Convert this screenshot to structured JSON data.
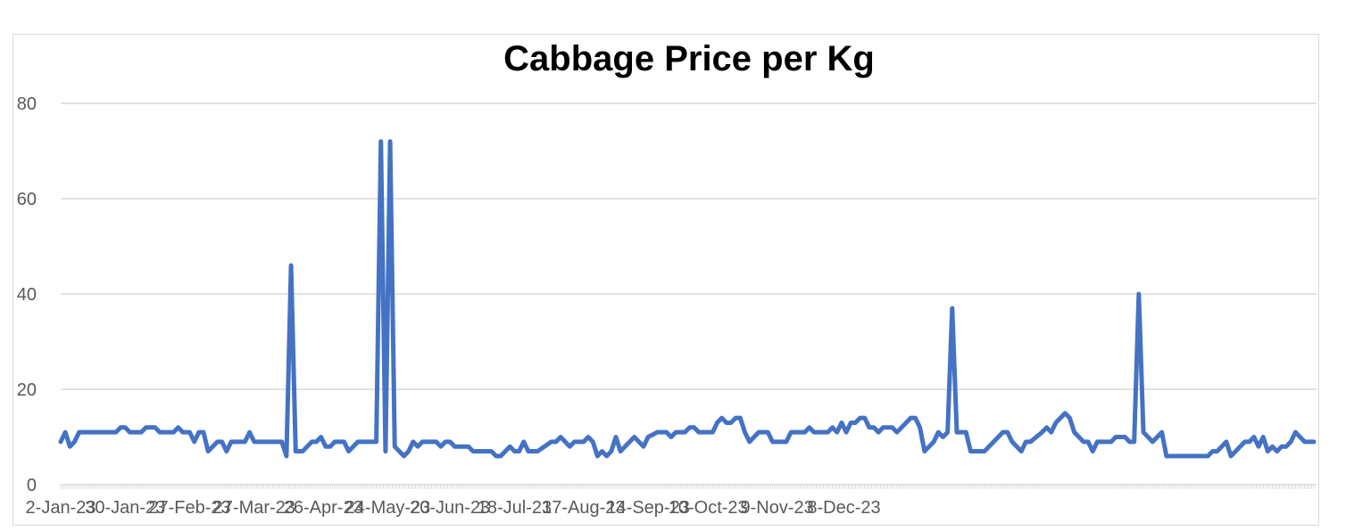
{
  "chart_data": {
    "type": "line",
    "title": "Cabbage Price per Kg",
    "xlabel": "",
    "ylabel": "",
    "ylim": [
      0,
      80
    ],
    "yticks": [
      0,
      20,
      40,
      60,
      80
    ],
    "grid": true,
    "legend": "none",
    "x_start_date": "2-Jan-23",
    "x_ticks": [
      "2-Jan-23",
      "30-Jan-23",
      "27-Feb-23",
      "27-Mar-23",
      "26-Apr-23",
      "24-May-23",
      "20-Jun-23",
      "18-Jul-23",
      "17-Aug-23",
      "14-Sep-23",
      "10-Oct-23",
      "9-Nov-23",
      "8-Dec-23"
    ],
    "series": [
      {
        "color": "#4472c4",
        "points": [
          [
            "2-Jan-23",
            9
          ],
          [
            "4-Jan-23",
            11
          ],
          [
            "6-Jan-23",
            8
          ],
          [
            "8-Jan-23",
            9
          ],
          [
            "10-Jan-23",
            11
          ],
          [
            "14-Jan-23",
            11
          ],
          [
            "20-Jan-23",
            11
          ],
          [
            "26-Jan-23",
            11
          ],
          [
            "28-Jan-23",
            12
          ],
          [
            "30-Jan-23",
            12
          ],
          [
            "1-Feb-23",
            11
          ],
          [
            "6-Feb-23",
            11
          ],
          [
            "8-Feb-23",
            12
          ],
          [
            "12-Feb-23",
            12
          ],
          [
            "14-Feb-23",
            11
          ],
          [
            "20-Feb-23",
            11
          ],
          [
            "22-Feb-23",
            12
          ],
          [
            "24-Feb-23",
            11
          ],
          [
            "27-Feb-23",
            11
          ],
          [
            "1-Mar-23",
            9
          ],
          [
            "3-Mar-23",
            11
          ],
          [
            "5-Mar-23",
            11
          ],
          [
            "7-Mar-23",
            7
          ],
          [
            "11-Mar-23",
            9
          ],
          [
            "13-Mar-23",
            9
          ],
          [
            "15-Mar-23",
            7
          ],
          [
            "17-Mar-23",
            9
          ],
          [
            "23-Mar-23",
            9
          ],
          [
            "25-Mar-23",
            11
          ],
          [
            "27-Mar-23",
            9
          ],
          [
            "31-Mar-23",
            9
          ],
          [
            "8-Apr-23",
            9
          ],
          [
            "10-Apr-23",
            6
          ],
          [
            "12-Apr-23",
            46
          ],
          [
            "14-Apr-23",
            7
          ],
          [
            "17-Apr-23",
            7
          ],
          [
            "21-Apr-23",
            9
          ],
          [
            "23-Apr-23",
            9
          ],
          [
            "25-Apr-23",
            10
          ],
          [
            "27-Apr-23",
            8
          ],
          [
            "29-Apr-23",
            8
          ],
          [
            "1-May-23",
            9
          ],
          [
            "5-May-23",
            9
          ],
          [
            "7-May-23",
            7
          ],
          [
            "11-May-23",
            9
          ],
          [
            "19-May-23",
            9
          ],
          [
            "21-May-23",
            72
          ],
          [
            "23-May-23",
            7
          ],
          [
            "25-May-23",
            72
          ],
          [
            "27-May-23",
            8
          ],
          [
            "31-May-23",
            6
          ],
          [
            "2-Jun-23",
            7
          ],
          [
            "4-Jun-23",
            9
          ],
          [
            "6-Jun-23",
            8
          ],
          [
            "8-Jun-23",
            9
          ],
          [
            "14-Jun-23",
            9
          ],
          [
            "16-Jun-23",
            8
          ],
          [
            "18-Jun-23",
            9
          ],
          [
            "20-Jun-23",
            9
          ],
          [
            "22-Jun-23",
            8
          ],
          [
            "28-Jun-23",
            8
          ],
          [
            "30-Jun-23",
            7
          ],
          [
            "8-Jul-23",
            7
          ],
          [
            "10-Jul-23",
            6
          ],
          [
            "12-Jul-23",
            6
          ],
          [
            "16-Jul-23",
            8
          ],
          [
            "18-Jul-23",
            7
          ],
          [
            "20-Jul-23",
            7
          ],
          [
            "22-Jul-23",
            9
          ],
          [
            "24-Jul-23",
            7
          ],
          [
            "28-Jul-23",
            7
          ],
          [
            "3-Aug-23",
            9
          ],
          [
            "5-Aug-23",
            9
          ],
          [
            "7-Aug-23",
            10
          ],
          [
            "11-Aug-23",
            8
          ],
          [
            "13-Aug-23",
            9
          ],
          [
            "17-Aug-23",
            9
          ],
          [
            "19-Aug-23",
            10
          ],
          [
            "21-Aug-23",
            9
          ],
          [
            "23-Aug-23",
            6
          ],
          [
            "25-Aug-23",
            7
          ],
          [
            "27-Aug-23",
            6
          ],
          [
            "29-Aug-23",
            7
          ],
          [
            "31-Aug-23",
            10
          ],
          [
            "2-Sep-23",
            7
          ],
          [
            "6-Sep-23",
            9
          ],
          [
            "8-Sep-23",
            10
          ],
          [
            "12-Sep-23",
            8
          ],
          [
            "14-Sep-23",
            10
          ],
          [
            "18-Sep-23",
            11
          ],
          [
            "22-Sep-23",
            11
          ],
          [
            "24-Sep-23",
            10
          ],
          [
            "26-Sep-23",
            11
          ],
          [
            "30-Sep-23",
            11
          ],
          [
            "2-Oct-23",
            12
          ],
          [
            "4-Oct-23",
            12
          ],
          [
            "6-Oct-23",
            11
          ],
          [
            "12-Oct-23",
            11
          ],
          [
            "14-Oct-23",
            13
          ],
          [
            "16-Oct-23",
            14
          ],
          [
            "18-Oct-23",
            13
          ],
          [
            "20-Oct-23",
            13
          ],
          [
            "22-Oct-23",
            14
          ],
          [
            "24-Oct-23",
            14
          ],
          [
            "26-Oct-23",
            11
          ],
          [
            "28-Oct-23",
            9
          ],
          [
            "30-Oct-23",
            10
          ],
          [
            "1-Nov-23",
            11
          ],
          [
            "5-Nov-23",
            11
          ],
          [
            "7-Nov-23",
            9
          ],
          [
            "13-Nov-23",
            9
          ],
          [
            "15-Nov-23",
            11
          ],
          [
            "21-Nov-23",
            11
          ],
          [
            "23-Nov-23",
            12
          ],
          [
            "25-Nov-23",
            11
          ],
          [
            "1-Dec-23",
            11
          ],
          [
            "3-Dec-23",
            12
          ],
          [
            "5-Dec-23",
            11
          ],
          [
            "7-Dec-23",
            13
          ],
          [
            "9-Dec-23",
            11
          ],
          [
            "11-Dec-23",
            13
          ],
          [
            "13-Dec-23",
            13
          ],
          [
            "15-Dec-23",
            14
          ],
          [
            "17-Dec-23",
            14
          ],
          [
            "19-Dec-23",
            12
          ],
          [
            "21-Dec-23",
            12
          ],
          [
            "23-Dec-23",
            11
          ],
          [
            "25-Dec-23",
            12
          ],
          [
            "29-Dec-23",
            12
          ],
          [
            "31-Dec-23",
            11
          ],
          [
            "2-Jan-24",
            12
          ],
          [
            "6-Jan-24",
            14
          ],
          [
            "8-Jan-24",
            14
          ],
          [
            "10-Jan-24",
            12
          ],
          [
            "12-Jan-24",
            7
          ],
          [
            "14-Jan-24",
            8
          ],
          [
            "16-Jan-24",
            9
          ],
          [
            "18-Jan-24",
            11
          ],
          [
            "20-Jan-24",
            10
          ],
          [
            "22-Jan-24",
            11
          ],
          [
            "24-Jan-24",
            37
          ],
          [
            "26-Jan-24",
            11
          ],
          [
            "30-Jan-24",
            11
          ],
          [
            "1-Feb-24",
            7
          ],
          [
            "7-Feb-24",
            7
          ],
          [
            "11-Feb-24",
            9
          ],
          [
            "15-Feb-24",
            11
          ],
          [
            "17-Feb-24",
            11
          ],
          [
            "19-Feb-24",
            9
          ],
          [
            "23-Feb-24",
            7
          ],
          [
            "25-Feb-24",
            9
          ],
          [
            "27-Feb-24",
            9
          ],
          [
            "3-Mar-24",
            11
          ],
          [
            "5-Mar-24",
            12
          ],
          [
            "7-Mar-24",
            11
          ],
          [
            "9-Mar-24",
            13
          ],
          [
            "11-Mar-24",
            14
          ],
          [
            "13-Mar-24",
            15
          ],
          [
            "15-Mar-24",
            14
          ],
          [
            "17-Mar-24",
            11
          ],
          [
            "21-Mar-24",
            9
          ],
          [
            "23-Mar-24",
            9
          ],
          [
            "25-Mar-24",
            7
          ],
          [
            "27-Mar-24",
            9
          ],
          [
            "2-Apr-24",
            9
          ],
          [
            "4-Apr-24",
            10
          ],
          [
            "8-Apr-24",
            10
          ],
          [
            "10-Apr-24",
            9
          ],
          [
            "12-Apr-24",
            9
          ],
          [
            "14-Apr-24",
            40
          ],
          [
            "16-Apr-24",
            11
          ],
          [
            "20-Apr-24",
            9
          ],
          [
            "24-Apr-24",
            11
          ],
          [
            "26-Apr-24",
            6
          ],
          [
            "30-Apr-24",
            6
          ],
          [
            "10-May-24",
            6
          ],
          [
            "14-May-24",
            6
          ],
          [
            "16-May-24",
            7
          ],
          [
            "18-May-24",
            7
          ],
          [
            "22-May-24",
            9
          ],
          [
            "24-May-24",
            6
          ],
          [
            "28-May-24",
            8
          ],
          [
            "30-May-24",
            9
          ],
          [
            "1-Jun-24",
            9
          ],
          [
            "3-Jun-24",
            10
          ],
          [
            "5-Jun-24",
            8
          ],
          [
            "7-Jun-24",
            10
          ],
          [
            "9-Jun-24",
            7
          ],
          [
            "11-Jun-24",
            8
          ],
          [
            "13-Jun-24",
            7
          ],
          [
            "15-Jun-24",
            8
          ],
          [
            "17-Jun-24",
            8
          ],
          [
            "19-Jun-24",
            9
          ],
          [
            "21-Jun-24",
            11
          ],
          [
            "23-Jun-24",
            10
          ],
          [
            "25-Jun-24",
            9
          ],
          [
            "29-Jun-24",
            9
          ]
        ]
      }
    ]
  }
}
